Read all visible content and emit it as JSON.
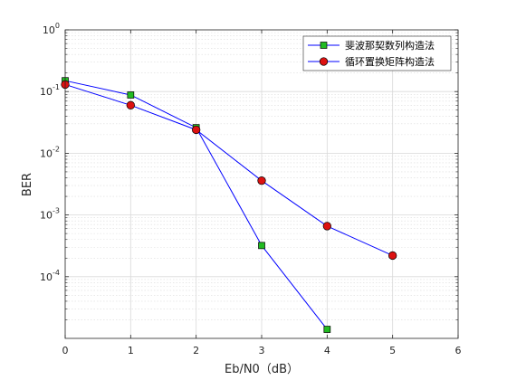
{
  "chart_data": {
    "type": "line",
    "xlabel": "Eb/N0（dB）",
    "ylabel": "BER",
    "xlim": [
      0,
      6
    ],
    "ylim_log10": [
      -5,
      0
    ],
    "y_scale": "log",
    "grid": true,
    "minor_grid": true,
    "legend_position": "top-right",
    "x_ticks": [
      "0",
      "1",
      "2",
      "3",
      "4",
      "5",
      "6"
    ],
    "y_ticks": [
      {
        "base": "10",
        "exp": "0"
      },
      {
        "base": "10",
        "exp": "-1"
      },
      {
        "base": "10",
        "exp": "-2"
      },
      {
        "base": "10",
        "exp": "-3"
      },
      {
        "base": "10",
        "exp": "-4"
      }
    ],
    "series": [
      {
        "name": "斐波那契数列构造法",
        "marker": "square",
        "line_color": "#0000ff",
        "marker_color": "#22bb22",
        "x": [
          0,
          1,
          2,
          3,
          4
        ],
        "y": [
          0.15,
          0.088,
          0.026,
          0.00032,
          1.4e-05
        ]
      },
      {
        "name": "循环置换矩阵构造法",
        "marker": "circle",
        "line_color": "#0000ff",
        "marker_color": "#dd1111",
        "x": [
          0,
          1,
          2,
          3,
          4,
          5
        ],
        "y": [
          0.13,
          0.06,
          0.024,
          0.0036,
          0.00066,
          0.00022
        ]
      }
    ]
  }
}
